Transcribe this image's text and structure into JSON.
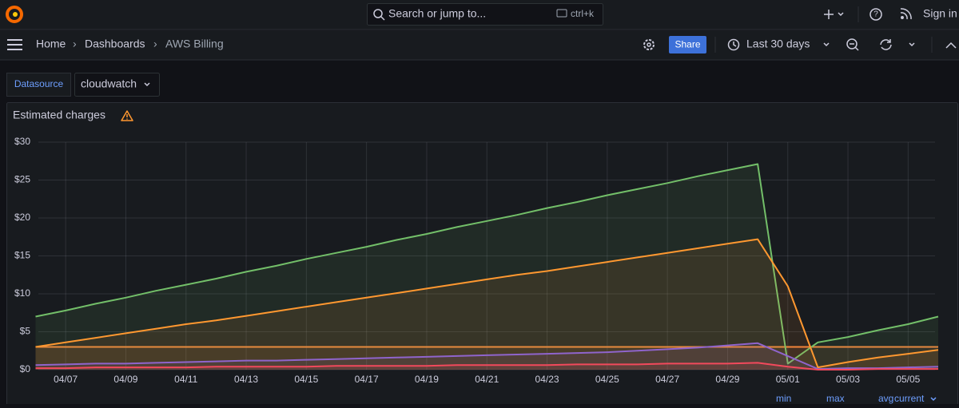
{
  "top_bar": {
    "search_placeholder": "Search or jump to...",
    "search_shortcut": "ctrl+k",
    "sign_in": "Sign in"
  },
  "breadcrumbs": [
    "Home",
    "Dashboards",
    "AWS Billing"
  ],
  "toolbar": {
    "share": "Share",
    "time_range": "Last 30 days"
  },
  "variables": {
    "label": "Datasource",
    "value": "cloudwatch"
  },
  "chart_data": {
    "type": "line",
    "title": "Estimated charges",
    "x": [
      null,
      "04/07",
      null,
      "04/09",
      null,
      "04/11",
      null,
      "04/13",
      null,
      "04/15",
      null,
      "04/17",
      null,
      "04/19",
      null,
      "04/21",
      null,
      "04/23",
      null,
      "04/25",
      null,
      "04/27",
      null,
      "04/29",
      null,
      "05/01",
      null,
      "05/03",
      null,
      "05/05",
      null
    ],
    "series": [
      {
        "color": "#F2843C",
        "values": [
          3.0,
          3.0,
          3.0,
          3.0,
          3.0,
          3.0,
          3.0,
          3.0,
          3.0,
          3.0,
          3.0,
          3.0,
          3.0,
          3.0,
          3.0,
          3.0,
          3.0,
          3.0,
          3.0,
          3.0,
          3.0,
          3.0,
          3.0,
          3.0,
          3.0,
          3.0,
          3.0,
          3.0,
          3.0,
          3.0,
          3.0
        ]
      },
      {
        "color": "#73BF69",
        "values": [
          7.0,
          7.8,
          8.7,
          9.5,
          10.4,
          11.2,
          12.0,
          12.9,
          13.7,
          14.6,
          15.4,
          16.2,
          17.1,
          17.9,
          18.8,
          19.6,
          20.4,
          21.3,
          22.1,
          23.0,
          23.8,
          24.6,
          25.5,
          26.3,
          27.1,
          0.8,
          3.6,
          4.3,
          5.2,
          6.0,
          7.0
        ]
      },
      {
        "color": "#FF9830",
        "values": [
          3.0,
          3.6,
          4.2,
          4.8,
          5.4,
          6.0,
          6.5,
          7.1,
          7.7,
          8.3,
          8.9,
          9.5,
          10.1,
          10.7,
          11.3,
          11.9,
          12.5,
          13.0,
          13.6,
          14.2,
          14.8,
          15.4,
          16.0,
          16.6,
          17.2,
          11.0,
          0.3,
          1.0,
          1.6,
          2.1,
          2.6
        ]
      },
      {
        "color": "#8F64CC",
        "values": [
          0.6,
          0.7,
          0.8,
          0.8,
          0.9,
          1.0,
          1.1,
          1.2,
          1.2,
          1.3,
          1.4,
          1.5,
          1.6,
          1.7,
          1.8,
          1.9,
          2.0,
          2.1,
          2.2,
          2.3,
          2.5,
          2.7,
          2.9,
          3.2,
          3.5,
          1.8,
          0.1,
          0.2,
          0.2,
          0.3,
          0.4
        ]
      },
      {
        "color": "#F2495C",
        "values": [
          0.2,
          0.2,
          0.3,
          0.3,
          0.3,
          0.3,
          0.4,
          0.4,
          0.4,
          0.4,
          0.5,
          0.5,
          0.5,
          0.5,
          0.6,
          0.6,
          0.6,
          0.6,
          0.7,
          0.7,
          0.7,
          0.8,
          0.8,
          0.8,
          0.9,
          0.4,
          0.0,
          0.0,
          0.1,
          0.1,
          0.1
        ]
      }
    ],
    "ylim": [
      0,
      30
    ],
    "yticks": [
      {
        "value": 0,
        "label": "$0"
      },
      {
        "value": 5,
        "label": "$5"
      },
      {
        "value": 10,
        "label": "$10"
      },
      {
        "value": 15,
        "label": "$15"
      },
      {
        "value": 20,
        "label": "$20"
      },
      {
        "value": 25,
        "label": "$25"
      },
      {
        "value": 30,
        "label": "$30"
      }
    ],
    "grid": true,
    "legend_columns": [
      "min",
      "max",
      "avg",
      "current"
    ]
  }
}
